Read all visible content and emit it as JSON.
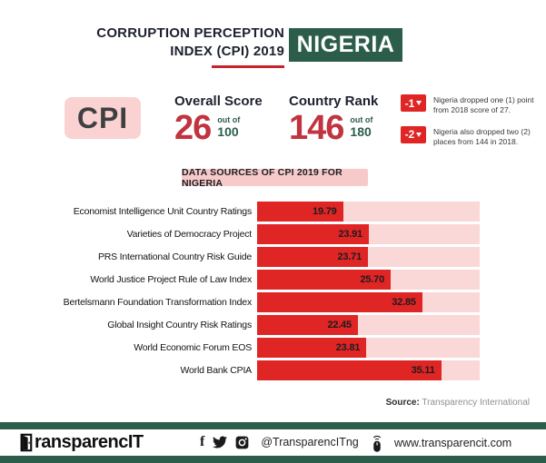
{
  "header": {
    "title_line1": "CORRUPTION PERCEPTION",
    "title_line2": "INDEX (CPI) 2019",
    "country": "NIGERIA"
  },
  "summary": {
    "cpi_label": "CPI",
    "overall_score": {
      "label": "Overall Score",
      "value": "26",
      "out_of": "out of",
      "total": "100"
    },
    "country_rank": {
      "label": "Country Rank",
      "value": "146",
      "out_of": "out of",
      "total": "180"
    },
    "changes": [
      {
        "badge": "-1",
        "text": "Nigeria dropped one (1) point from 2018 score of 27."
      },
      {
        "badge": "-2",
        "text": "Nigeria also dropped two (2) places from 144 in 2018."
      }
    ]
  },
  "chart_data": {
    "type": "bar",
    "orientation": "horizontal",
    "title": "DATA SOURCES OF CPI 2019 FOR NIGERIA",
    "categories": [
      "Economist Intelligence Unit Country Ratings",
      "Varieties of Democracy Project",
      "PRS International Country Risk Guide",
      "World Justice Project Rule of Law Index",
      "Bertelsmann Foundation Transformation Index",
      "Global Insight Country Risk Ratings",
      "World Economic Forum EOS",
      "World Bank CPIA"
    ],
    "values": [
      19.79,
      23.91,
      23.71,
      25.7,
      32.85,
      22.45,
      23.81,
      35.11
    ],
    "bar_display_pct": [
      38.6,
      50.2,
      49.8,
      60.0,
      74.2,
      45.3,
      49.1,
      82.7
    ],
    "xlabel": "",
    "ylabel": "",
    "grid": false,
    "legend": false,
    "bar_color": "#e02525",
    "track_color": "#f9d8d7",
    "value_labels_inside_bars": true
  },
  "source": {
    "label": "Source:",
    "text": " Transparency International"
  },
  "footer": {
    "brand": "TransparencIT",
    "brand_rest": "ransparencIT",
    "handle": "@TransparencITng",
    "website": "www.transparencit.com",
    "facebook_glyph": "f",
    "icon_names": [
      "door-icon",
      "facebook-icon",
      "twitter-icon",
      "instagram-icon",
      "mouse-icon"
    ]
  },
  "colors": {
    "green": "#2c5d4b",
    "bar_red": "#e02525",
    "number_crimson": "#c0333f",
    "underline_red": "#c4232b",
    "pink_box": "#f9d2d1",
    "pink_banner": "#f7c9c9",
    "pink_track": "#f9d8d7",
    "dark_text": "#1d2130"
  }
}
